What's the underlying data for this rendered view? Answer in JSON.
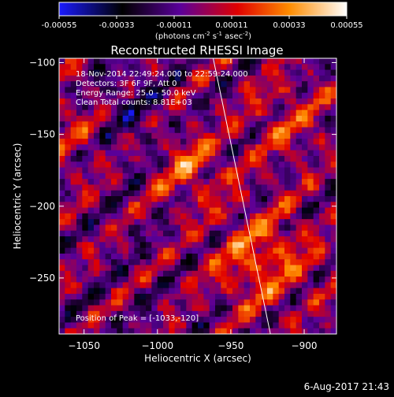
{
  "footer": {
    "date": "6-Aug-2017 21:43"
  },
  "chart_data": {
    "type": "heatmap",
    "title": "Reconstructed RHESSI Image",
    "xlabel": "Heliocentric X (arcsec)",
    "ylabel": "Heliocentric Y (arcsec)",
    "xlim": [
      -1067,
      -878
    ],
    "ylim": [
      -289,
      -97
    ],
    "xticks": [
      -1050,
      -1000,
      -950,
      -900
    ],
    "yticks": [
      -250,
      -200,
      -150,
      -100
    ],
    "colorbar": {
      "ticks": [
        -0.00055,
        -0.00033,
        -0.00011,
        0.00011,
        0.00033,
        0.00055
      ],
      "tick_labels": [
        "-0.00055",
        "-0.00033",
        "-0.00011",
        "0.00011",
        "0.00033",
        "0.00055"
      ],
      "label_prefix": "(photons cm",
      "label_sup1": "-2",
      "label_mid": " s",
      "label_sup2": "-1",
      "label_mid2": " asec",
      "label_sup3": "-2",
      "label_suffix": ")",
      "colors": [
        "#1a1aff",
        "#000000",
        "#6a00a8",
        "#e00000",
        "#ff8c00",
        "#ffffff"
      ]
    },
    "annotations": [
      "18-Nov-2014 22:49:24.000 to 22:59:24.000",
      "Detectors: 3F 6F 9F, Att 0",
      "Energy Range: 25.0 - 50.0 keV",
      "Clean    Total counts: 8.81E+03"
    ],
    "peak_label": "Position of Peak = [-1033,-120]",
    "peak": [
      -1033,
      -120
    ],
    "limb_line": [
      [
        -962,
        -97
      ],
      [
        -923,
        -289
      ]
    ]
  }
}
